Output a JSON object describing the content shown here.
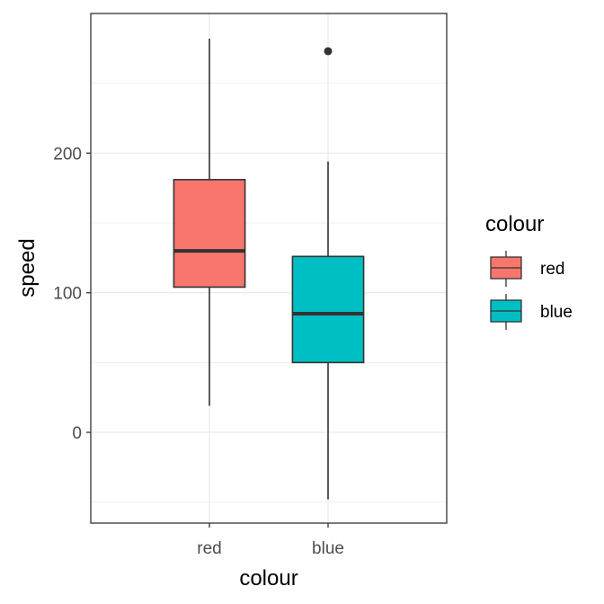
{
  "chart_data": {
    "type": "boxplot",
    "xlabel": "colour",
    "ylabel": "speed",
    "categories": [
      "red",
      "blue"
    ],
    "ylim": [
      -65,
      300
    ],
    "yticks": [
      0,
      100,
      200
    ],
    "grid": true,
    "legend": {
      "title": "colour",
      "position": "right",
      "entries": [
        "red",
        "blue"
      ]
    },
    "boxes": [
      {
        "category": "red",
        "min": 19,
        "q1": 104,
        "median": 130,
        "q3": 181,
        "max": 282,
        "outliers": [],
        "color": "#F8766D"
      },
      {
        "category": "blue",
        "min": -48,
        "q1": 50,
        "median": 85,
        "q3": 126,
        "max": 194,
        "outliers": [
          273
        ],
        "color": "#00BFC4"
      }
    ]
  }
}
